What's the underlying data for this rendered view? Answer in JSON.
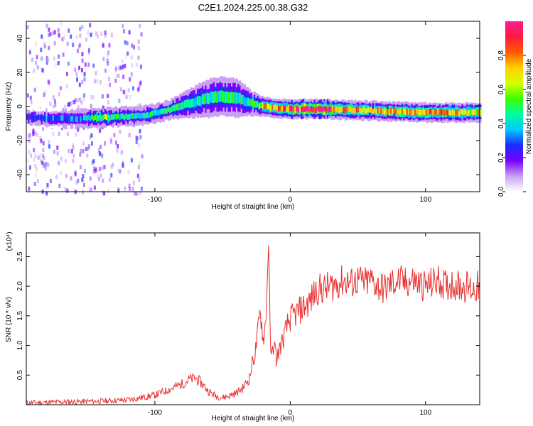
{
  "title": "C2E1.2024.225.00.38.G32",
  "chart_data": [
    {
      "type": "heatmap",
      "title": "C2E1.2024.225.00.38.G32",
      "xlabel": "Height of straight line (km)",
      "ylabel": "Frequency (Hz)",
      "xlim": [
        -195,
        140
      ],
      "ylim": [
        -50,
        50
      ],
      "x_ticks": [
        "-100",
        "0",
        "100"
      ],
      "x_tick_values": [
        -100,
        0,
        100
      ],
      "y_ticks": [
        "40",
        "20",
        "0",
        "-20",
        "-40"
      ],
      "y_tick_values": [
        40,
        20,
        0,
        -20,
        -40
      ],
      "colorbar": {
        "label": "Normalized spectral amplitude",
        "range": [
          0,
          1
        ],
        "ticks": [
          "0.0",
          "0.2",
          "0.4",
          "0.6",
          "0.8"
        ],
        "tick_values": [
          0,
          0.2,
          0.4,
          0.6,
          0.8
        ],
        "colormap": [
          "#ffffff",
          "#c9a0f2",
          "#7a00ff",
          "#1a2cff",
          "#00c8ff",
          "#00ffa0",
          "#3cff00",
          "#d8ff00",
          "#ffd000",
          "#ff5a00",
          "#ff1a40",
          "#ff1a90"
        ]
      },
      "ridge": [
        {
          "x": -195,
          "y": -6.5,
          "amp": 0.25,
          "width": 3
        },
        {
          "x": -175,
          "y": -7,
          "amp": 0.3,
          "width": 3
        },
        {
          "x": -155,
          "y": -7,
          "amp": 0.35,
          "width": 3
        },
        {
          "x": -140,
          "y": -6.5,
          "amp": 0.55,
          "width": 3
        },
        {
          "x": -125,
          "y": -6,
          "amp": 0.45,
          "width": 3
        },
        {
          "x": -110,
          "y": -5.5,
          "amp": 0.4,
          "width": 3
        },
        {
          "x": -100,
          "y": -4,
          "amp": 0.45,
          "width": 3
        },
        {
          "x": -90,
          "y": -2,
          "amp": 0.45,
          "width": 3
        },
        {
          "x": -80,
          "y": 0.5,
          "amp": 0.5,
          "width": 4
        },
        {
          "x": -70,
          "y": 3,
          "amp": 0.45,
          "width": 5
        },
        {
          "x": -60,
          "y": 5,
          "amp": 0.45,
          "width": 6
        },
        {
          "x": -50,
          "y": 6,
          "amp": 0.5,
          "width": 6
        },
        {
          "x": -40,
          "y": 5,
          "amp": 0.45,
          "width": 6
        },
        {
          "x": -30,
          "y": 2,
          "amp": 0.45,
          "width": 4
        },
        {
          "x": -20,
          "y": 0,
          "amp": 0.65,
          "width": 3
        },
        {
          "x": -10,
          "y": -1,
          "amp": 0.75,
          "width": 3
        },
        {
          "x": 0,
          "y": -1.5,
          "amp": 0.85,
          "width": 3
        },
        {
          "x": 10,
          "y": -1.5,
          "amp": 0.95,
          "width": 3
        },
        {
          "x": 25,
          "y": -1.5,
          "amp": 0.95,
          "width": 3
        },
        {
          "x": 40,
          "y": -2,
          "amp": 0.75,
          "width": 3
        },
        {
          "x": 60,
          "y": -2.5,
          "amp": 0.7,
          "width": 3
        },
        {
          "x": 80,
          "y": -3,
          "amp": 0.7,
          "width": 3
        },
        {
          "x": 100,
          "y": -3.5,
          "amp": 0.75,
          "width": 3
        },
        {
          "x": 120,
          "y": -3.5,
          "amp": 0.75,
          "width": 3
        },
        {
          "x": 140,
          "y": -3.5,
          "amp": 0.7,
          "width": 3
        }
      ]
    },
    {
      "type": "line",
      "xlabel": "Height of straight line (km)",
      "ylabel": "SNR (10 * v/v)",
      "y_multiplier": "(x10⁴)",
      "xlim": [
        -195,
        140
      ],
      "ylim": [
        0,
        2.9
      ],
      "x_ticks": [
        "-100",
        "0",
        "100"
      ],
      "x_tick_values": [
        -100,
        0,
        100
      ],
      "y_ticks": [
        "0.5",
        "1.0",
        "1.5",
        "2.0",
        "2.5"
      ],
      "y_tick_values": [
        0.5,
        1.0,
        1.5,
        2.0,
        2.5
      ],
      "series": [
        {
          "color": "#e83030",
          "x": [
            -195,
            -180,
            -160,
            -140,
            -120,
            -110,
            -100,
            -90,
            -80,
            -75,
            -70,
            -65,
            -60,
            -55,
            -50,
            -45,
            -40,
            -35,
            -30,
            -28,
            -26,
            -24,
            -22,
            -20,
            -18,
            -17,
            -16,
            -15,
            -14,
            -13,
            -12,
            -10,
            -8,
            -6,
            -4,
            -2,
            0,
            5,
            10,
            15,
            20,
            25,
            30,
            35,
            40,
            45,
            50,
            55,
            60,
            65,
            70,
            75,
            80,
            85,
            90,
            95,
            100,
            105,
            110,
            115,
            120,
            125,
            130,
            135,
            140
          ],
          "y": [
            0.03,
            0.04,
            0.05,
            0.06,
            0.08,
            0.12,
            0.16,
            0.25,
            0.35,
            0.42,
            0.45,
            0.35,
            0.22,
            0.15,
            0.12,
            0.15,
            0.2,
            0.28,
            0.45,
            0.7,
            0.85,
            1.2,
            1.6,
            1.1,
            1.4,
            2.05,
            2.85,
            1.3,
            0.75,
            0.95,
            1.05,
            0.75,
            0.95,
            1.05,
            1.2,
            1.35,
            1.45,
            1.55,
            1.65,
            1.75,
            1.95,
            1.95,
            2.0,
            2.05,
            2.1,
            2.05,
            2.1,
            2.05,
            2.1,
            2.0,
            1.95,
            2.05,
            2.1,
            2.05,
            2.1,
            2.05,
            2.0,
            2.05,
            2.1,
            2.0,
            2.05,
            2.0,
            2.0,
            1.95,
            2.0
          ]
        }
      ]
    }
  ]
}
